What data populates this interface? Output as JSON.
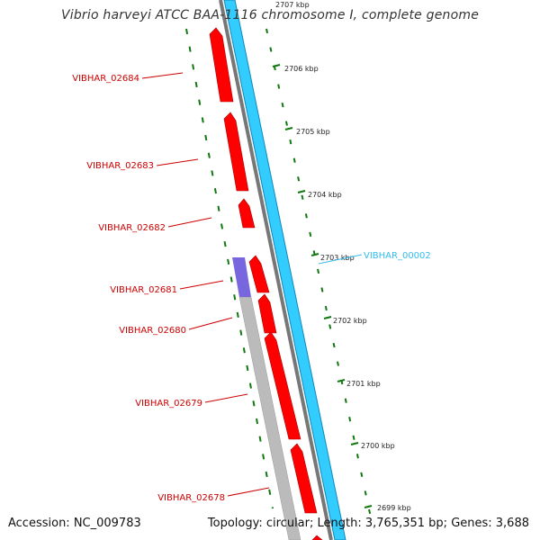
{
  "title": "Vibrio harveyi ATCC BAA-1116 chromosome I, complete genome",
  "footer": {
    "accession": "Accession: NC_009783",
    "topology": "Topology: circular;",
    "length": "Length: 3,765,351 bp;",
    "genes": "Genes: 3,688"
  },
  "ruler": {
    "ticks": [
      "2707 kbp",
      "2706 kbp",
      "2705 kbp",
      "2704 kbp",
      "2703 kbp",
      "2702 kbp",
      "2701 kbp",
      "2700 kbp",
      "2699 kbp"
    ]
  },
  "gene_labels": {
    "reverse": [
      "VIBHAR_02684",
      "VIBHAR_02683",
      "VIBHAR_02682",
      "VIBHAR_02681",
      "VIBHAR_02680",
      "VIBHAR_02679",
      "VIBHAR_02678"
    ],
    "forward": [
      "VIBHAR_00002"
    ]
  },
  "colors": {
    "cds": "#ff0000",
    "gene_label": "#cc0000",
    "forward_label": "#33bbee",
    "backbone_blue": "#33ccff",
    "backbone_gray": "#777777",
    "purple_feature": "#7766dd",
    "gray_feature": "#bbbbbb",
    "dotted_ring": "#117711"
  }
}
